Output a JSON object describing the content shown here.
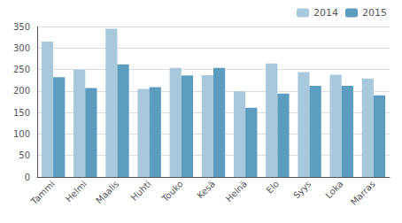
{
  "chart_data": {
    "type": "bar",
    "categories": [
      "Tammi",
      "Helmi",
      "Maalis",
      "Huhti",
      "Touko",
      "Kesä",
      "Heinä",
      "Elo",
      "Syys",
      "Loka",
      "Marras"
    ],
    "series": [
      {
        "name": "2014",
        "color": "#a8c8dc",
        "values": [
          315,
          250,
          345,
          205,
          254,
          237,
          199,
          264,
          244,
          238,
          229
        ]
      },
      {
        "name": "2015",
        "color": "#5b9cbf",
        "values": [
          232,
          207,
          262,
          209,
          236,
          254,
          161,
          194,
          212,
          212,
          190
        ]
      }
    ],
    "ylim": [
      0,
      350
    ],
    "yticks": [
      0,
      50,
      100,
      150,
      200,
      250,
      300,
      350
    ],
    "grid": true,
    "legend": "upper right"
  }
}
